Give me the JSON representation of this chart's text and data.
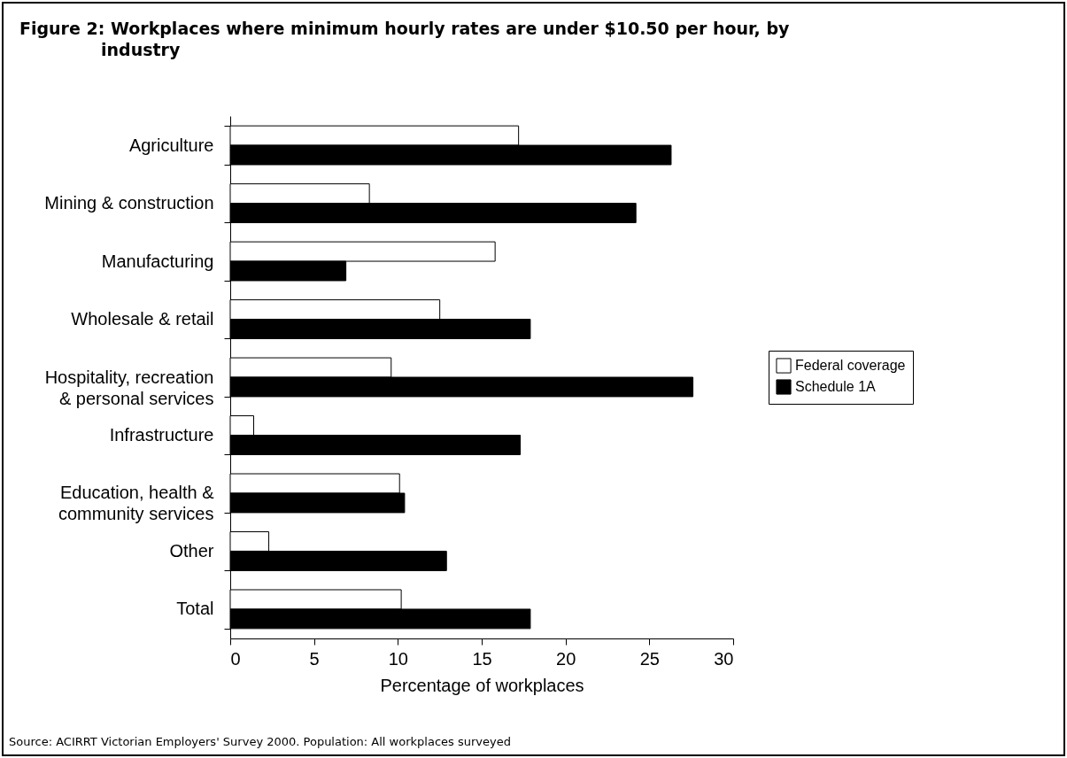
{
  "chart_data": {
    "type": "bar",
    "orientation": "horizontal",
    "title": "Figure 2: Workplaces where minimum hourly rates are under $10.50 per hour, by industry",
    "xlabel": "Percentage of workplaces",
    "categories": [
      "Agriculture",
      "Mining & construction",
      "Manufacturing",
      "Wholesale & retail",
      "Hospitality, recreation & personal services",
      "Infrastructure",
      "Education, health & community services",
      "Other",
      "Total"
    ],
    "series": [
      {
        "name": "Federal coverage",
        "color": "#ffffff",
        "values": [
          17.2,
          8.3,
          15.8,
          12.5,
          9.6,
          1.4,
          10.1,
          2.3,
          10.2
        ]
      },
      {
        "name": "Schedule 1A",
        "color": "#000000",
        "values": [
          26.3,
          24.2,
          6.9,
          17.9,
          27.6,
          17.3,
          10.4,
          12.9,
          17.9
        ]
      }
    ],
    "xlim": [
      0,
      30
    ],
    "xticks": [
      0,
      5,
      10,
      15,
      20,
      25,
      30
    ],
    "legend": "right",
    "grid": false,
    "annotations": [
      "Source: ACIRRT Victorian Employers' Survey 2000.   Population: All workplaces surveyed"
    ]
  }
}
